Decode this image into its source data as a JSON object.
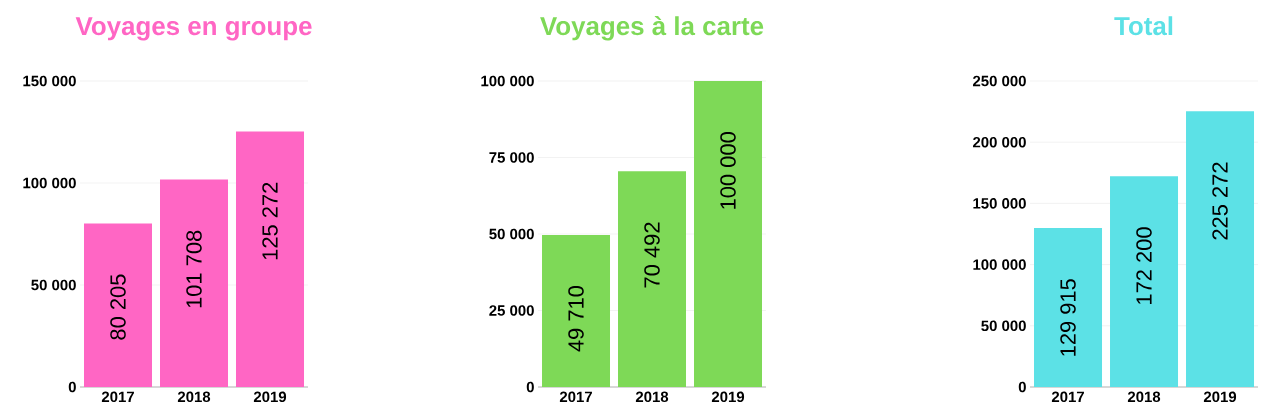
{
  "chart_data": [
    {
      "type": "bar",
      "title": "Voyages en groupe",
      "categories": [
        "2017",
        "2018",
        "2019"
      ],
      "values": [
        80205,
        101708,
        125272
      ],
      "value_labels": [
        "80 205",
        "101 708",
        "125 272"
      ],
      "color": "#ff66c4",
      "ylim": [
        0,
        150000
      ],
      "yticks": [
        0,
        {
          "value": 50000,
          "label": "50 000"
        },
        {
          "value": 100000,
          "label": "100 000"
        },
        {
          "value": 150000,
          "label": "150 000"
        }
      ],
      "grid": "y"
    },
    {
      "type": "bar",
      "title": "Voyages  à la carte",
      "categories": [
        "2017",
        "2018",
        "2019"
      ],
      "values": [
        49710,
        70492,
        100000
      ],
      "value_labels": [
        "49 710",
        "70 492",
        "100 000"
      ],
      "color": "#7ed957",
      "ylim": [
        0,
        100000
      ],
      "yticks": [
        0,
        {
          "value": 25000,
          "label": "25 000"
        },
        {
          "value": 50000,
          "label": "50 000"
        },
        {
          "value": 75000,
          "label": "75 000"
        },
        {
          "value": 100000,
          "label": "100 000"
        }
      ],
      "grid": "y"
    },
    {
      "type": "bar",
      "title": "Total",
      "categories": [
        "2017",
        "2018",
        "2019"
      ],
      "values": [
        129915,
        172200,
        225272
      ],
      "value_labels": [
        "129 915",
        "172 200",
        "225 272"
      ],
      "color": "#5ce1e6",
      "ylim": [
        0,
        250000
      ],
      "yticks": [
        0,
        {
          "value": 50000,
          "label": "50 000"
        },
        {
          "value": 100000,
          "label": "100 000"
        },
        {
          "value": 150000,
          "label": "150 000"
        },
        {
          "value": 200000,
          "label": "200 000"
        },
        {
          "value": 250000,
          "label": "250 000"
        }
      ],
      "grid": "y"
    }
  ]
}
